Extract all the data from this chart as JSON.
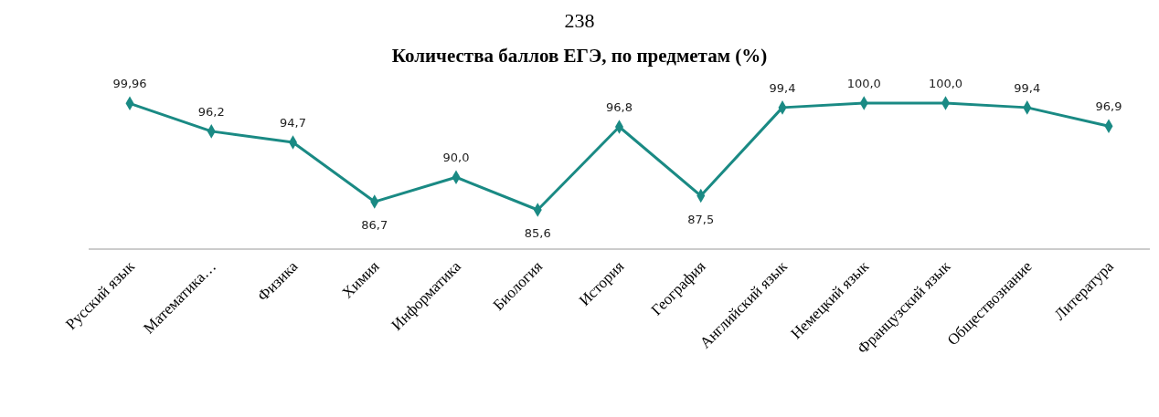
{
  "chart_data": {
    "type": "line",
    "title": "Количества баллов ЕГЭ, по предметам (%)",
    "annotations": [
      "238"
    ],
    "categories": [
      "Русский язык",
      "Математика…",
      "Физика",
      "Химия",
      "Информатика",
      "Биология",
      "История",
      "География",
      "Английский язык",
      "Немецкий язык",
      "Французский язык",
      "Обществознание",
      "Литература"
    ],
    "series": [
      {
        "color": "#1a8a84",
        "values": [
          99.96,
          96.2,
          94.7,
          86.7,
          90.0,
          85.6,
          96.8,
          87.5,
          99.4,
          100.0,
          100.0,
          99.4,
          96.9
        ],
        "value_labels": [
          "99,96",
          "96,2",
          "94,7",
          "86,7",
          "90,0",
          "85,6",
          "96,8",
          "87,5",
          "99,4",
          "100,0",
          "100,0",
          "99,4",
          "96,9"
        ]
      }
    ],
    "tick_labels": "x",
    "marker": "diamond",
    "line_style": "solid"
  }
}
